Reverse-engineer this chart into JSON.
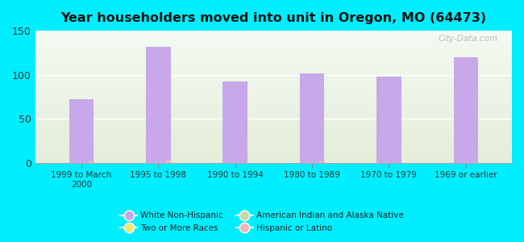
{
  "title": "Year householders moved into unit in Oregon, MO (64473)",
  "categories": [
    "1999 to March\n2000",
    "1995 to 1998",
    "1990 to 1994",
    "1980 to 1989",
    "1970 to 1979",
    "1969 or earlier"
  ],
  "white_non_hispanic": [
    72,
    132,
    92,
    102,
    98,
    120
  ],
  "hispanic": [
    2,
    3,
    0,
    2,
    0,
    0
  ],
  "ylim": [
    0,
    150
  ],
  "yticks": [
    0,
    50,
    100,
    150
  ],
  "bar_color_white": "#c8a8e8",
  "bar_color_indian": "#c8d8a0",
  "bar_color_two": "#f0e870",
  "bar_color_hispanic": "#f0b8b8",
  "bg_outer": "#00eeff",
  "bg_inner_top": "#f2faf2",
  "bg_inner_bottom": "#e4edd8",
  "legend_items": [
    {
      "label": "White Non-Hispanic",
      "color": "#c8a8e8"
    },
    {
      "label": "Two or More Races",
      "color": "#f0e870"
    },
    {
      "label": "American Indian and Alaska Native",
      "color": "#c8d8a0"
    },
    {
      "label": "Hispanic or Latino",
      "color": "#f0b8b8"
    }
  ],
  "watermark": "City-Data.com"
}
